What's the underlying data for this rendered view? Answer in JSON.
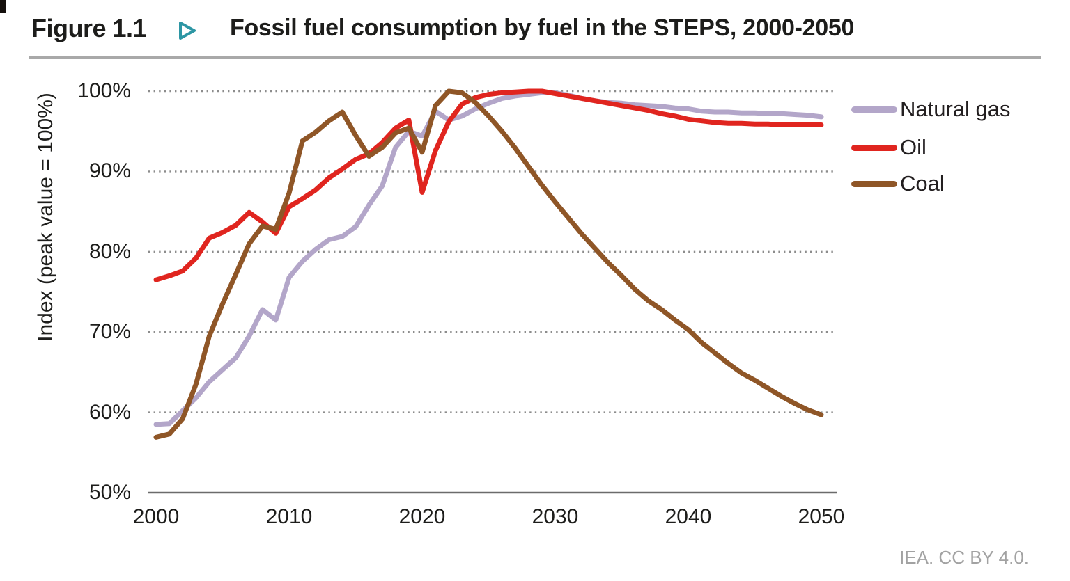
{
  "header": {
    "figure_label": "Figure 1.1",
    "title": "Fossil fuel consumption by fuel in the STEPS, 2000-2050",
    "pointer_icon_color": "#2d96a4"
  },
  "footer": {
    "credit": "IEA. CC BY 4.0."
  },
  "chart_data": {
    "type": "line",
    "title": "Fossil fuel consumption by fuel in the STEPS, 2000-2050",
    "xlabel": "",
    "ylabel": "Index (peak value = 100%)",
    "xlim": [
      2000,
      2050
    ],
    "ylim": [
      50,
      100
    ],
    "grid": "horizontal dotted",
    "grid_color": "#8c8c8c",
    "axis_color": "#6b6b6b",
    "legend_position": "right",
    "xticks": {
      "values": [
        2000,
        2010,
        2020,
        2030,
        2040,
        2050
      ],
      "labels": [
        "2000",
        "2010",
        "2020",
        "2030",
        "2040",
        "2050"
      ]
    },
    "yticks": {
      "values": [
        100,
        90,
        80,
        70,
        60,
        50
      ],
      "labels": [
        "100%",
        "90%",
        "80%",
        "70%",
        "60%",
        "50%"
      ]
    },
    "x": [
      2000,
      2001,
      2002,
      2003,
      2004,
      2005,
      2006,
      2007,
      2008,
      2009,
      2010,
      2011,
      2012,
      2013,
      2014,
      2015,
      2016,
      2017,
      2018,
      2019,
      2020,
      2021,
      2022,
      2023,
      2024,
      2025,
      2026,
      2027,
      2028,
      2029,
      2030,
      2031,
      2032,
      2033,
      2034,
      2035,
      2036,
      2037,
      2038,
      2039,
      2040,
      2041,
      2042,
      2043,
      2044,
      2045,
      2046,
      2047,
      2048,
      2049,
      2050
    ],
    "series": [
      {
        "name": "Natural gas",
        "color": "#b3a6c9",
        "values": [
          58.5,
          58.6,
          60.2,
          61.8,
          63.8,
          65.3,
          66.8,
          69.5,
          72.8,
          71.5,
          76.8,
          78.8,
          80.3,
          81.5,
          81.9,
          83.1,
          85.8,
          88.2,
          93.0,
          95.0,
          94.4,
          97.5,
          96.4,
          96.9,
          97.8,
          98.5,
          99.1,
          99.4,
          99.6,
          99.8,
          99.8,
          99.5,
          99.1,
          98.8,
          98.6,
          98.5,
          98.3,
          98.2,
          98.1,
          97.9,
          97.8,
          97.5,
          97.4,
          97.4,
          97.3,
          97.3,
          97.2,
          97.2,
          97.1,
          97.0,
          96.8
        ]
      },
      {
        "name": "Oil",
        "color": "#e0251f",
        "values": [
          76.5,
          77.0,
          77.6,
          79.2,
          81.7,
          82.4,
          83.3,
          84.9,
          83.7,
          82.3,
          85.6,
          86.6,
          87.7,
          89.2,
          90.3,
          91.5,
          92.2,
          93.6,
          95.4,
          96.4,
          87.4,
          92.6,
          96.2,
          98.4,
          99.2,
          99.6,
          99.8,
          99.9,
          100.0,
          100.0,
          99.7,
          99.4,
          99.1,
          98.8,
          98.5,
          98.2,
          97.9,
          97.6,
          97.2,
          96.9,
          96.5,
          96.3,
          96.1,
          96.0,
          96.0,
          95.9,
          95.9,
          95.8,
          95.8,
          95.8,
          95.8
        ]
      },
      {
        "name": "Coal",
        "color": "#8f5627",
        "values": [
          56.9,
          57.3,
          59.2,
          63.5,
          69.5,
          73.5,
          77.2,
          81.0,
          83.2,
          82.8,
          87.3,
          93.8,
          94.9,
          96.3,
          97.4,
          94.5,
          91.9,
          93.0,
          94.8,
          95.4,
          92.4,
          98.2,
          100.0,
          99.8,
          98.6,
          96.9,
          95.0,
          92.9,
          90.6,
          88.3,
          86.2,
          84.2,
          82.2,
          80.4,
          78.6,
          77.0,
          75.3,
          73.9,
          72.8,
          71.5,
          70.3,
          68.7,
          67.4,
          66.1,
          64.9,
          64.0,
          63.0,
          62.0,
          61.1,
          60.3,
          59.7
        ]
      }
    ]
  }
}
